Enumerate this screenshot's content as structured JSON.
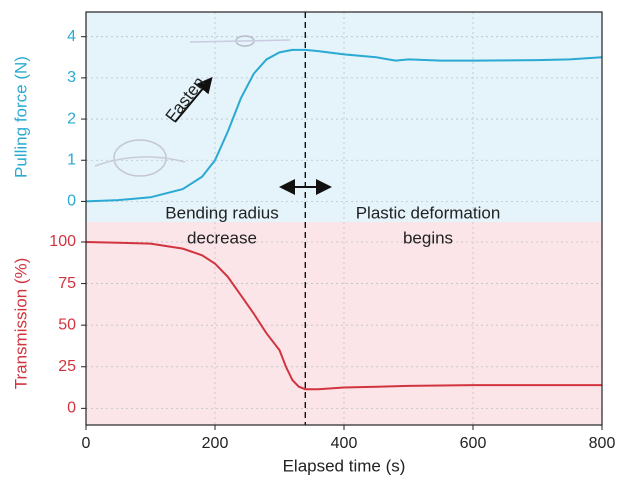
{
  "chart_data": [
    {
      "type": "line",
      "ylabel": "Pulling force (N)",
      "x": [
        0,
        50,
        100,
        150,
        180,
        200,
        220,
        240,
        260,
        280,
        300,
        320,
        340,
        360,
        400,
        450,
        480,
        500,
        550,
        600,
        700,
        750,
        800
      ],
      "series": [
        {
          "color": "#2aa9d2",
          "values": [
            0,
            0.03,
            0.1,
            0.3,
            0.6,
            1.0,
            1.7,
            2.5,
            3.1,
            3.45,
            3.62,
            3.68,
            3.68,
            3.65,
            3.57,
            3.5,
            3.42,
            3.45,
            3.42,
            3.42,
            3.43,
            3.45,
            3.5
          ]
        }
      ],
      "xlim": [
        0,
        800
      ],
      "ylim": [
        -0.5,
        4.6
      ],
      "yticks": [
        0,
        1,
        2,
        3,
        4
      ],
      "background": "#e5f3fa",
      "grid": true,
      "vline": 340,
      "annotations": [
        "Fasten"
      ]
    },
    {
      "type": "line",
      "xlabel": "Elapsed time (s)",
      "ylabel": "Transmission (%)",
      "x": [
        0,
        50,
        100,
        150,
        180,
        200,
        220,
        240,
        260,
        280,
        290,
        300,
        310,
        320,
        330,
        340,
        360,
        400,
        500,
        600,
        700,
        800
      ],
      "series": [
        {
          "color": "#d2343f",
          "values": [
            100,
            99.5,
            99,
            96,
            92,
            87,
            79,
            68,
            57,
            45,
            40,
            35,
            25,
            17,
            13,
            11.5,
            11.5,
            12.5,
            13.5,
            14,
            14,
            14
          ]
        }
      ],
      "xlim": [
        0,
        800
      ],
      "xticks": [
        0,
        200,
        400,
        600,
        800
      ],
      "ylim": [
        -10,
        112
      ],
      "yticks": [
        0,
        25,
        50,
        75,
        100
      ],
      "background": "#fbe5e9",
      "grid": true,
      "annotations": [
        "Bending radius",
        "decrease",
        "Plastic deformation",
        "begins"
      ]
    }
  ]
}
